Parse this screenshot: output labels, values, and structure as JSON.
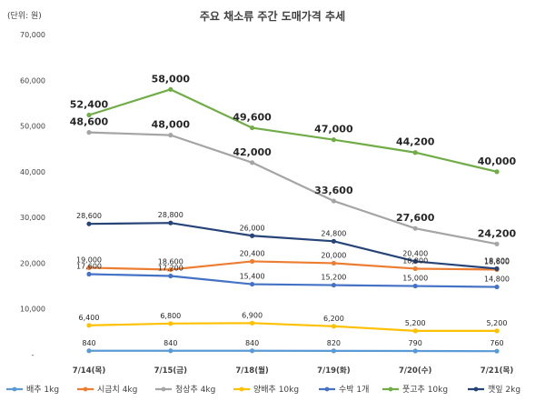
{
  "chart_data": {
    "type": "line",
    "title": "주요 채소류 주간 도매가격 추세",
    "unit_label": "(단위: 원)",
    "categories": [
      "7/14(목)",
      "7/15(금)",
      "7/18(월)",
      "7/19(화)",
      "7/20(수)",
      "7/21(목)"
    ],
    "ylim": [
      0,
      70000
    ],
    "yticks": [
      "-",
      "10,000",
      "20,000",
      "30,000",
      "40,000",
      "50,000",
      "60,000",
      "70,000"
    ],
    "grid": false,
    "legend_position": "bottom",
    "series": [
      {
        "name": "배추 1kg",
        "color": "#5b9bd5",
        "values": [
          840,
          840,
          840,
          820,
          790,
          760
        ],
        "labels": [
          "840",
          "840",
          "840",
          "820",
          "790",
          "760"
        ],
        "label_style": "small",
        "label_pos": "above"
      },
      {
        "name": "시금치 4kg",
        "color": "#ed7d31",
        "values": [
          19000,
          18600,
          20400,
          20000,
          18800,
          18600
        ],
        "labels": [
          "19,000",
          "18,600",
          "20,400",
          "20,000",
          "18,800",
          "18,600"
        ],
        "label_style": "small",
        "label_pos": "above"
      },
      {
        "name": "청상추 4kg",
        "color": "#a5a5a5",
        "values": [
          48600,
          48000,
          42000,
          33600,
          27600,
          24200
        ],
        "labels": [
          "48,600",
          "48,000",
          "42,000",
          "33,600",
          "27,600",
          "24,200"
        ],
        "label_style": "large",
        "label_pos": "above"
      },
      {
        "name": "양배추 10kg",
        "color": "#ffc000",
        "values": [
          6400,
          6800,
          6900,
          6200,
          5200,
          5200
        ],
        "labels": [
          "6,400",
          "6,800",
          "6,900",
          "6,200",
          "5,200",
          "5,200"
        ],
        "label_style": "small",
        "label_pos": "above"
      },
      {
        "name": "수박 1개",
        "color": "#4472c4",
        "values": [
          17600,
          17200,
          15400,
          15200,
          15000,
          14800
        ],
        "labels": [
          "17,600",
          "17,200",
          "15,400",
          "15,200",
          "15,000",
          "14,800"
        ],
        "label_style": "small",
        "label_pos": "above"
      },
      {
        "name": "풋고추 10kg",
        "color": "#70ad47",
        "values": [
          52400,
          58000,
          49600,
          47000,
          44200,
          40000
        ],
        "labels": [
          "52,400",
          "58,000",
          "49,600",
          "47,000",
          "44,200",
          "40,000"
        ],
        "label_style": "large",
        "label_pos": "above"
      },
      {
        "name": "깻잎 2kg",
        "color": "#264478",
        "values": [
          28600,
          28800,
          26000,
          24800,
          20400,
          18800
        ],
        "labels": [
          "28,600",
          "28,800",
          "26,000",
          "24,800",
          "20,400",
          "18,800"
        ],
        "label_style": "small",
        "label_pos": "above"
      }
    ]
  }
}
